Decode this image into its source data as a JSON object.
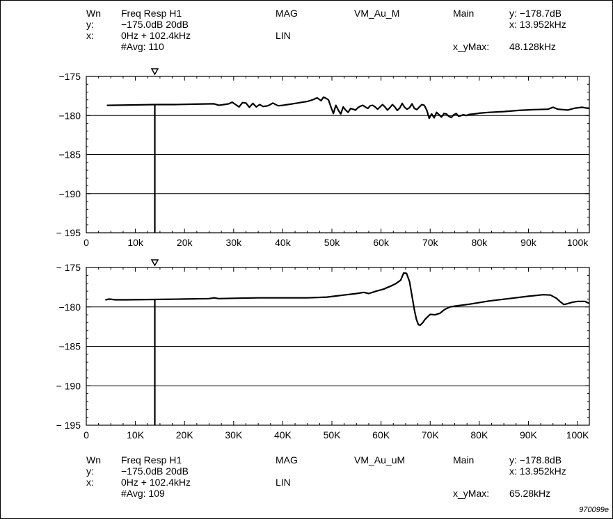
{
  "figure_ref": "970099e",
  "top_header": {
    "wn_label": "Wn",
    "y_label": "y:",
    "x_label": "x:",
    "trace": "Freq Resp H1",
    "y_scale": "−175.0dB 20dB",
    "x_span": "0Hz + 102.4kHz",
    "avg": "#Avg: 110",
    "mode": "MAG",
    "x_scale_mode": "LIN",
    "signal": "VM_Au_M",
    "view": "Main",
    "marker_y": "y: −178.7dB",
    "marker_x": "x: 13.952kHz",
    "max_label": "x_yMax:",
    "max_value": "48.128kHz"
  },
  "bottom_header": {
    "wn_label": "Wn",
    "y_label": "y:",
    "x_label": "x:",
    "trace": "Freq Resp H1",
    "y_scale": "−175.0dB 20dB",
    "x_span": "0Hz + 102.4kHz",
    "avg": "#Avg: 109",
    "mode": "MAG",
    "x_scale_mode": "LIN",
    "signal": "VM_Au_uM",
    "view": "Main",
    "marker_y": "y: −178.8dB",
    "marker_x": "x: 13.952kHz",
    "max_label": "x_yMax:",
    "max_value": "65.28kHz"
  },
  "chart_data": [
    {
      "type": "line",
      "grid": true,
      "xlim": [
        0,
        102.4
      ],
      "ylim": [
        -195,
        -175
      ],
      "x_ticks": [
        0,
        10,
        20,
        30,
        40,
        50,
        60,
        70,
        80,
        90,
        100
      ],
      "x_tick_labels": [
        "0",
        "10k",
        "20k",
        "30k",
        "40k",
        "50k",
        "60k",
        "70k",
        "80k",
        "90k",
        "100k"
      ],
      "y_ticks": [
        -175,
        -180,
        -185,
        -190,
        -195
      ],
      "y_tick_labels": [
        "−175",
        "−180",
        "−185",
        "−190",
        "− 195"
      ],
      "marker_x": 13.952,
      "series": [
        {
          "color": "#000000",
          "x": [
            4.3,
            9,
            14,
            18,
            22,
            26,
            27,
            28,
            29,
            29.7,
            30.4,
            31.1,
            31.8,
            32.5,
            33.2,
            33.9,
            34.6,
            35.3,
            36,
            37,
            38,
            39,
            40,
            41,
            42,
            43,
            44,
            45,
            46,
            47,
            47.8,
            48.3,
            48.8,
            49.3,
            49.8,
            50.3,
            50.8,
            51.3,
            51.8,
            52.3,
            52.8,
            53.3,
            53.8,
            54.3,
            54.8,
            55.3,
            55.8,
            56.3,
            56.8,
            57.3,
            57.8,
            58.3,
            58.8,
            59.3,
            59.8,
            60.3,
            60.8,
            61.3,
            61.8,
            62.3,
            62.8,
            63.3,
            63.8,
            64.3,
            64.8,
            65.3,
            65.8,
            66.3,
            66.8,
            67.3,
            67.8,
            68.3,
            68.8,
            69.3,
            69.8,
            70.3,
            70.8,
            71.3,
            71.8,
            72.3,
            72.8,
            73.3,
            73.8,
            74.3,
            74.8,
            75.3,
            75.8,
            76.3,
            76.8,
            77.3,
            78,
            79,
            80,
            82,
            85,
            88,
            91,
            94,
            95,
            96,
            98,
            99.5,
            101,
            102.2
          ],
          "y": [
            -178.7,
            -178.65,
            -178.6,
            -178.6,
            -178.55,
            -178.5,
            -178.7,
            -178.6,
            -178.5,
            -178.3,
            -178.6,
            -178.9,
            -178.35,
            -178.4,
            -178.95,
            -178.45,
            -178.9,
            -178.6,
            -178.85,
            -178.75,
            -178.4,
            -178.75,
            -178.7,
            -178.6,
            -178.5,
            -178.4,
            -178.3,
            -178.2,
            -178.0,
            -177.75,
            -178.1,
            -177.65,
            -177.8,
            -178.0,
            -178.9,
            -179.75,
            -178.7,
            -179.3,
            -179.8,
            -178.9,
            -179.3,
            -179.6,
            -179.1,
            -179.2,
            -179.3,
            -179.0,
            -178.8,
            -178.7,
            -178.9,
            -179.1,
            -178.75,
            -178.7,
            -178.9,
            -179.2,
            -178.9,
            -178.6,
            -178.9,
            -179.3,
            -179.0,
            -178.6,
            -178.9,
            -179.35,
            -179.05,
            -178.45,
            -178.95,
            -179.2,
            -179.0,
            -178.5,
            -179.1,
            -179.25,
            -178.9,
            -178.6,
            -178.7,
            -179.3,
            -180.35,
            -179.8,
            -180.3,
            -179.6,
            -179.9,
            -180.2,
            -179.75,
            -179.8,
            -180.1,
            -180.25,
            -179.9,
            -179.75,
            -180.1,
            -180.0,
            -179.9,
            -180.0,
            -179.85,
            -179.8,
            -179.7,
            -179.6,
            -179.5,
            -179.35,
            -179.25,
            -179.2,
            -178.95,
            -179.2,
            -179.3,
            -179.05,
            -178.95,
            -179.1
          ]
        }
      ]
    },
    {
      "type": "line",
      "grid": true,
      "xlim": [
        0,
        102.4
      ],
      "ylim": [
        -195,
        -175
      ],
      "x_ticks": [
        0,
        10,
        20,
        30,
        40,
        50,
        60,
        70,
        80,
        90,
        100
      ],
      "x_tick_labels": [
        "0",
        "10K",
        "20K",
        "30K",
        "40K",
        "50K",
        "60K",
        "70K",
        "80K",
        "90K",
        "100K"
      ],
      "y_ticks": [
        -175,
        -180,
        -185,
        -190,
        -195
      ],
      "y_tick_labels": [
        "− 175",
        "−180",
        "−185",
        "− 190",
        "− 195"
      ],
      "marker_x": 13.952,
      "series": [
        {
          "color": "#000000",
          "x": [
            4.0,
            4.6,
            5.3,
            6,
            8,
            14,
            20,
            25,
            26,
            27,
            30,
            35,
            40,
            45,
            49,
            51,
            53,
            55,
            56.5,
            57.5,
            59,
            60.5,
            62,
            63,
            64,
            64.6,
            65.2,
            65.8,
            66.3,
            66.8,
            67.2,
            67.6,
            68.0,
            68.5,
            69,
            70,
            71,
            72,
            73,
            74,
            75,
            78,
            82,
            86,
            90,
            93,
            94.5,
            95.7,
            96.5,
            97.2,
            97.9,
            99,
            100,
            101.5,
            102.2
          ],
          "y": [
            -179.1,
            -179.0,
            -179.05,
            -179.1,
            -179.1,
            -179.05,
            -179.0,
            -178.95,
            -178.85,
            -178.95,
            -178.9,
            -178.85,
            -178.85,
            -178.85,
            -178.75,
            -178.6,
            -178.45,
            -178.3,
            -178.15,
            -178.3,
            -178.0,
            -177.75,
            -177.35,
            -177.05,
            -176.6,
            -175.7,
            -175.75,
            -176.8,
            -178.6,
            -180.4,
            -181.6,
            -182.25,
            -182.3,
            -182.0,
            -181.55,
            -180.95,
            -181.0,
            -180.8,
            -180.3,
            -180.0,
            -179.9,
            -179.65,
            -179.25,
            -178.95,
            -178.65,
            -178.45,
            -178.5,
            -178.9,
            -179.35,
            -179.7,
            -179.6,
            -179.4,
            -179.3,
            -179.3,
            -179.5
          ]
        }
      ]
    }
  ]
}
